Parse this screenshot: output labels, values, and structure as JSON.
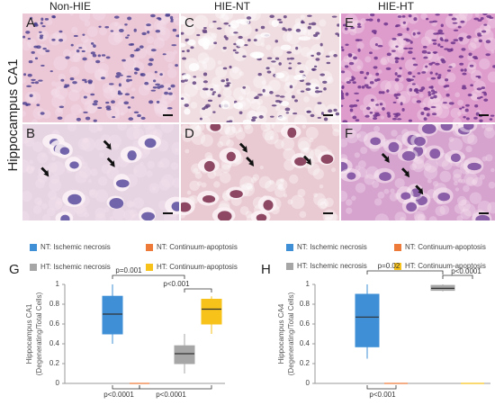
{
  "figure": {
    "row_label": "Hippocampus CA1",
    "columns": [
      "Non-HIE",
      "HIE-NT",
      "HIE-HT"
    ],
    "panels": [
      "A",
      "B",
      "C",
      "D",
      "E",
      "F"
    ]
  },
  "chart_data": [
    {
      "type": "box",
      "panel": "G",
      "ylabel": [
        "Hippocampus CA1",
        "(Degenerating/Total Cells)"
      ],
      "ylim": [
        0,
        1
      ],
      "yticks": [
        0,
        0.2,
        0.4,
        0.6,
        0.8,
        1
      ],
      "series": [
        {
          "name": "NT: Ischemic necrosis",
          "color": "#3e8fd6",
          "whislo": 0.4,
          "q1": 0.5,
          "med": 0.7,
          "q3": 0.88,
          "whishi": 1.0
        },
        {
          "name": "NT: Continuum-apoptosis",
          "color": "#ee7a3a",
          "whislo": 0,
          "q1": 0,
          "med": 0,
          "q3": 0,
          "whishi": 0
        },
        {
          "name": "HT: Ischemic necrosis",
          "color": "#a6a6a6",
          "whislo": 0.1,
          "q1": 0.2,
          "med": 0.3,
          "q3": 0.38,
          "whishi": 0.5
        },
        {
          "name": "HT: Continuum-apoptosis",
          "color": "#f7c21a",
          "whislo": 0.5,
          "q1": 0.6,
          "med": 0.75,
          "q3": 0.85,
          "whishi": 0.88
        }
      ],
      "annotations": [
        "p=0.001",
        "p<0.001",
        "p<0.0001",
        "p<0.0001"
      ]
    },
    {
      "type": "box",
      "panel": "H",
      "ylabel": [
        "Hippocampus CA4",
        "(Degenerating/Total Cells)"
      ],
      "ylim": [
        0,
        1
      ],
      "yticks": [
        0,
        0.2,
        0.4,
        0.6,
        0.8,
        1
      ],
      "series": [
        {
          "name": "NT: Ischemic necrosis",
          "color": "#3e8fd6",
          "whislo": 0.25,
          "q1": 0.37,
          "med": 0.67,
          "q3": 0.9,
          "whishi": 1.0
        },
        {
          "name": "NT: Continuum-apoptosis",
          "color": "#ee7a3a",
          "whislo": 0,
          "q1": 0,
          "med": 0,
          "q3": 0,
          "whishi": 0
        },
        {
          "name": "HT: Ischemic necrosis",
          "color": "#a6a6a6",
          "whislo": 0.93,
          "q1": 0.94,
          "med": 0.96,
          "q3": 0.99,
          "whishi": 1.0
        },
        {
          "name": "HT: Continuum-apoptosis",
          "color": "#f7c21a",
          "whislo": 0,
          "q1": 0,
          "med": 0,
          "q3": 0,
          "whishi": 0
        }
      ],
      "annotations": [
        "p=0.02",
        "p<0.0001",
        "p<0.001"
      ]
    }
  ]
}
